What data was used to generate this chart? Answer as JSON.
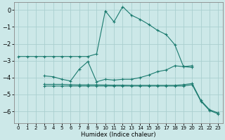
{
  "xlabel": "Humidex (Indice chaleur)",
  "background_color": "#cce8e8",
  "grid_color": "#aacfcf",
  "line_color": "#1a7a6e",
  "xlim": [
    -0.5,
    23.5
  ],
  "ylim": [
    -6.7,
    0.45
  ],
  "yticks": [
    0,
    -1,
    -2,
    -3,
    -4,
    -5,
    -6
  ],
  "xticks": [
    0,
    1,
    2,
    3,
    4,
    5,
    6,
    7,
    8,
    9,
    10,
    11,
    12,
    13,
    14,
    15,
    16,
    17,
    18,
    19,
    20,
    21,
    22,
    23
  ],
  "curves": [
    {
      "x": [
        0,
        1,
        2,
        3,
        4,
        5,
        6,
        7,
        8,
        9,
        10,
        11,
        12,
        13,
        14,
        15,
        16,
        17,
        18,
        19,
        20
      ],
      "y": [
        -2.75,
        -2.75,
        -2.75,
        -2.75,
        -2.75,
        -2.75,
        -2.75,
        -2.75,
        -2.75,
        -2.6,
        -0.05,
        -0.7,
        0.2,
        -0.3,
        -0.55,
        -0.85,
        -1.2,
        -1.45,
        -2.05,
        -3.35,
        -3.4
      ]
    },
    {
      "x": [
        3,
        4,
        5,
        6,
        7,
        8,
        9,
        10,
        11,
        12,
        13,
        14,
        15,
        16,
        17,
        18,
        19,
        20
      ],
      "y": [
        -3.9,
        -3.95,
        -4.1,
        -4.2,
        -3.5,
        -3.05,
        -4.25,
        -4.1,
        -4.15,
        -4.1,
        -4.1,
        -4.0,
        -3.85,
        -3.65,
        -3.55,
        -3.3,
        -3.35,
        -3.3
      ]
    },
    {
      "x": [
        3,
        4,
        5,
        6,
        7,
        8,
        9,
        10,
        11,
        12,
        13,
        14,
        15,
        16,
        17,
        18,
        19,
        20,
        21,
        22,
        23
      ],
      "y": [
        -4.4,
        -4.4,
        -4.4,
        -4.42,
        -4.43,
        -4.43,
        -4.43,
        -4.44,
        -4.45,
        -4.45,
        -4.46,
        -4.46,
        -4.46,
        -4.46,
        -4.46,
        -4.46,
        -4.42,
        -4.35,
        -5.35,
        -5.9,
        -6.1
      ]
    },
    {
      "x": [
        3,
        4,
        5,
        6,
        7,
        8,
        9,
        10,
        11,
        12,
        13,
        14,
        15,
        16,
        17,
        18,
        19,
        20,
        21,
        22,
        23
      ],
      "y": [
        -4.5,
        -4.5,
        -4.5,
        -4.5,
        -4.5,
        -4.5,
        -4.5,
        -4.5,
        -4.5,
        -4.5,
        -4.5,
        -4.5,
        -4.5,
        -4.5,
        -4.5,
        -4.5,
        -4.5,
        -4.42,
        -5.4,
        -5.95,
        -6.15
      ]
    }
  ]
}
